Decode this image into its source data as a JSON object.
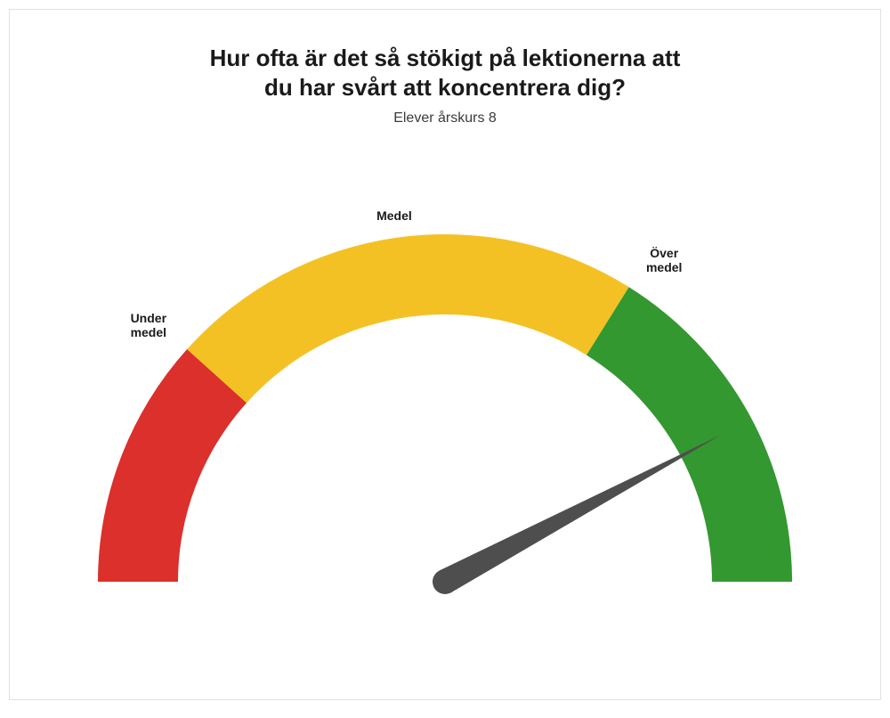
{
  "title_line1": "Hur ofta är det så stökigt på lektionerna att",
  "title_line2": "du har svårt att koncentrera dig?",
  "subtitle": "Elever årskurs 8",
  "gauge": {
    "type": "gauge",
    "min": 0,
    "max": 180,
    "outer_radius": 390,
    "inner_radius": 300,
    "background_color": "#ffffff",
    "segments": [
      {
        "start_deg": 0,
        "end_deg": 42,
        "color": "#db302b",
        "label": "Under\nmedel",
        "label_pos": "left"
      },
      {
        "start_deg": 42,
        "end_deg": 122,
        "color": "#f4c125",
        "label": "Medel",
        "label_pos": "top"
      },
      {
        "start_deg": 122,
        "end_deg": 180,
        "color": "#33982f",
        "label": "Över\nmedel",
        "label_pos": "right"
      }
    ],
    "needle": {
      "angle_deg": 152,
      "length": 350,
      "base_width": 28,
      "color": "#4e4e4e"
    },
    "label_fontsize": 14,
    "label_fontweight": 700,
    "title_fontsize": 26,
    "subtitle_fontsize": 16
  }
}
